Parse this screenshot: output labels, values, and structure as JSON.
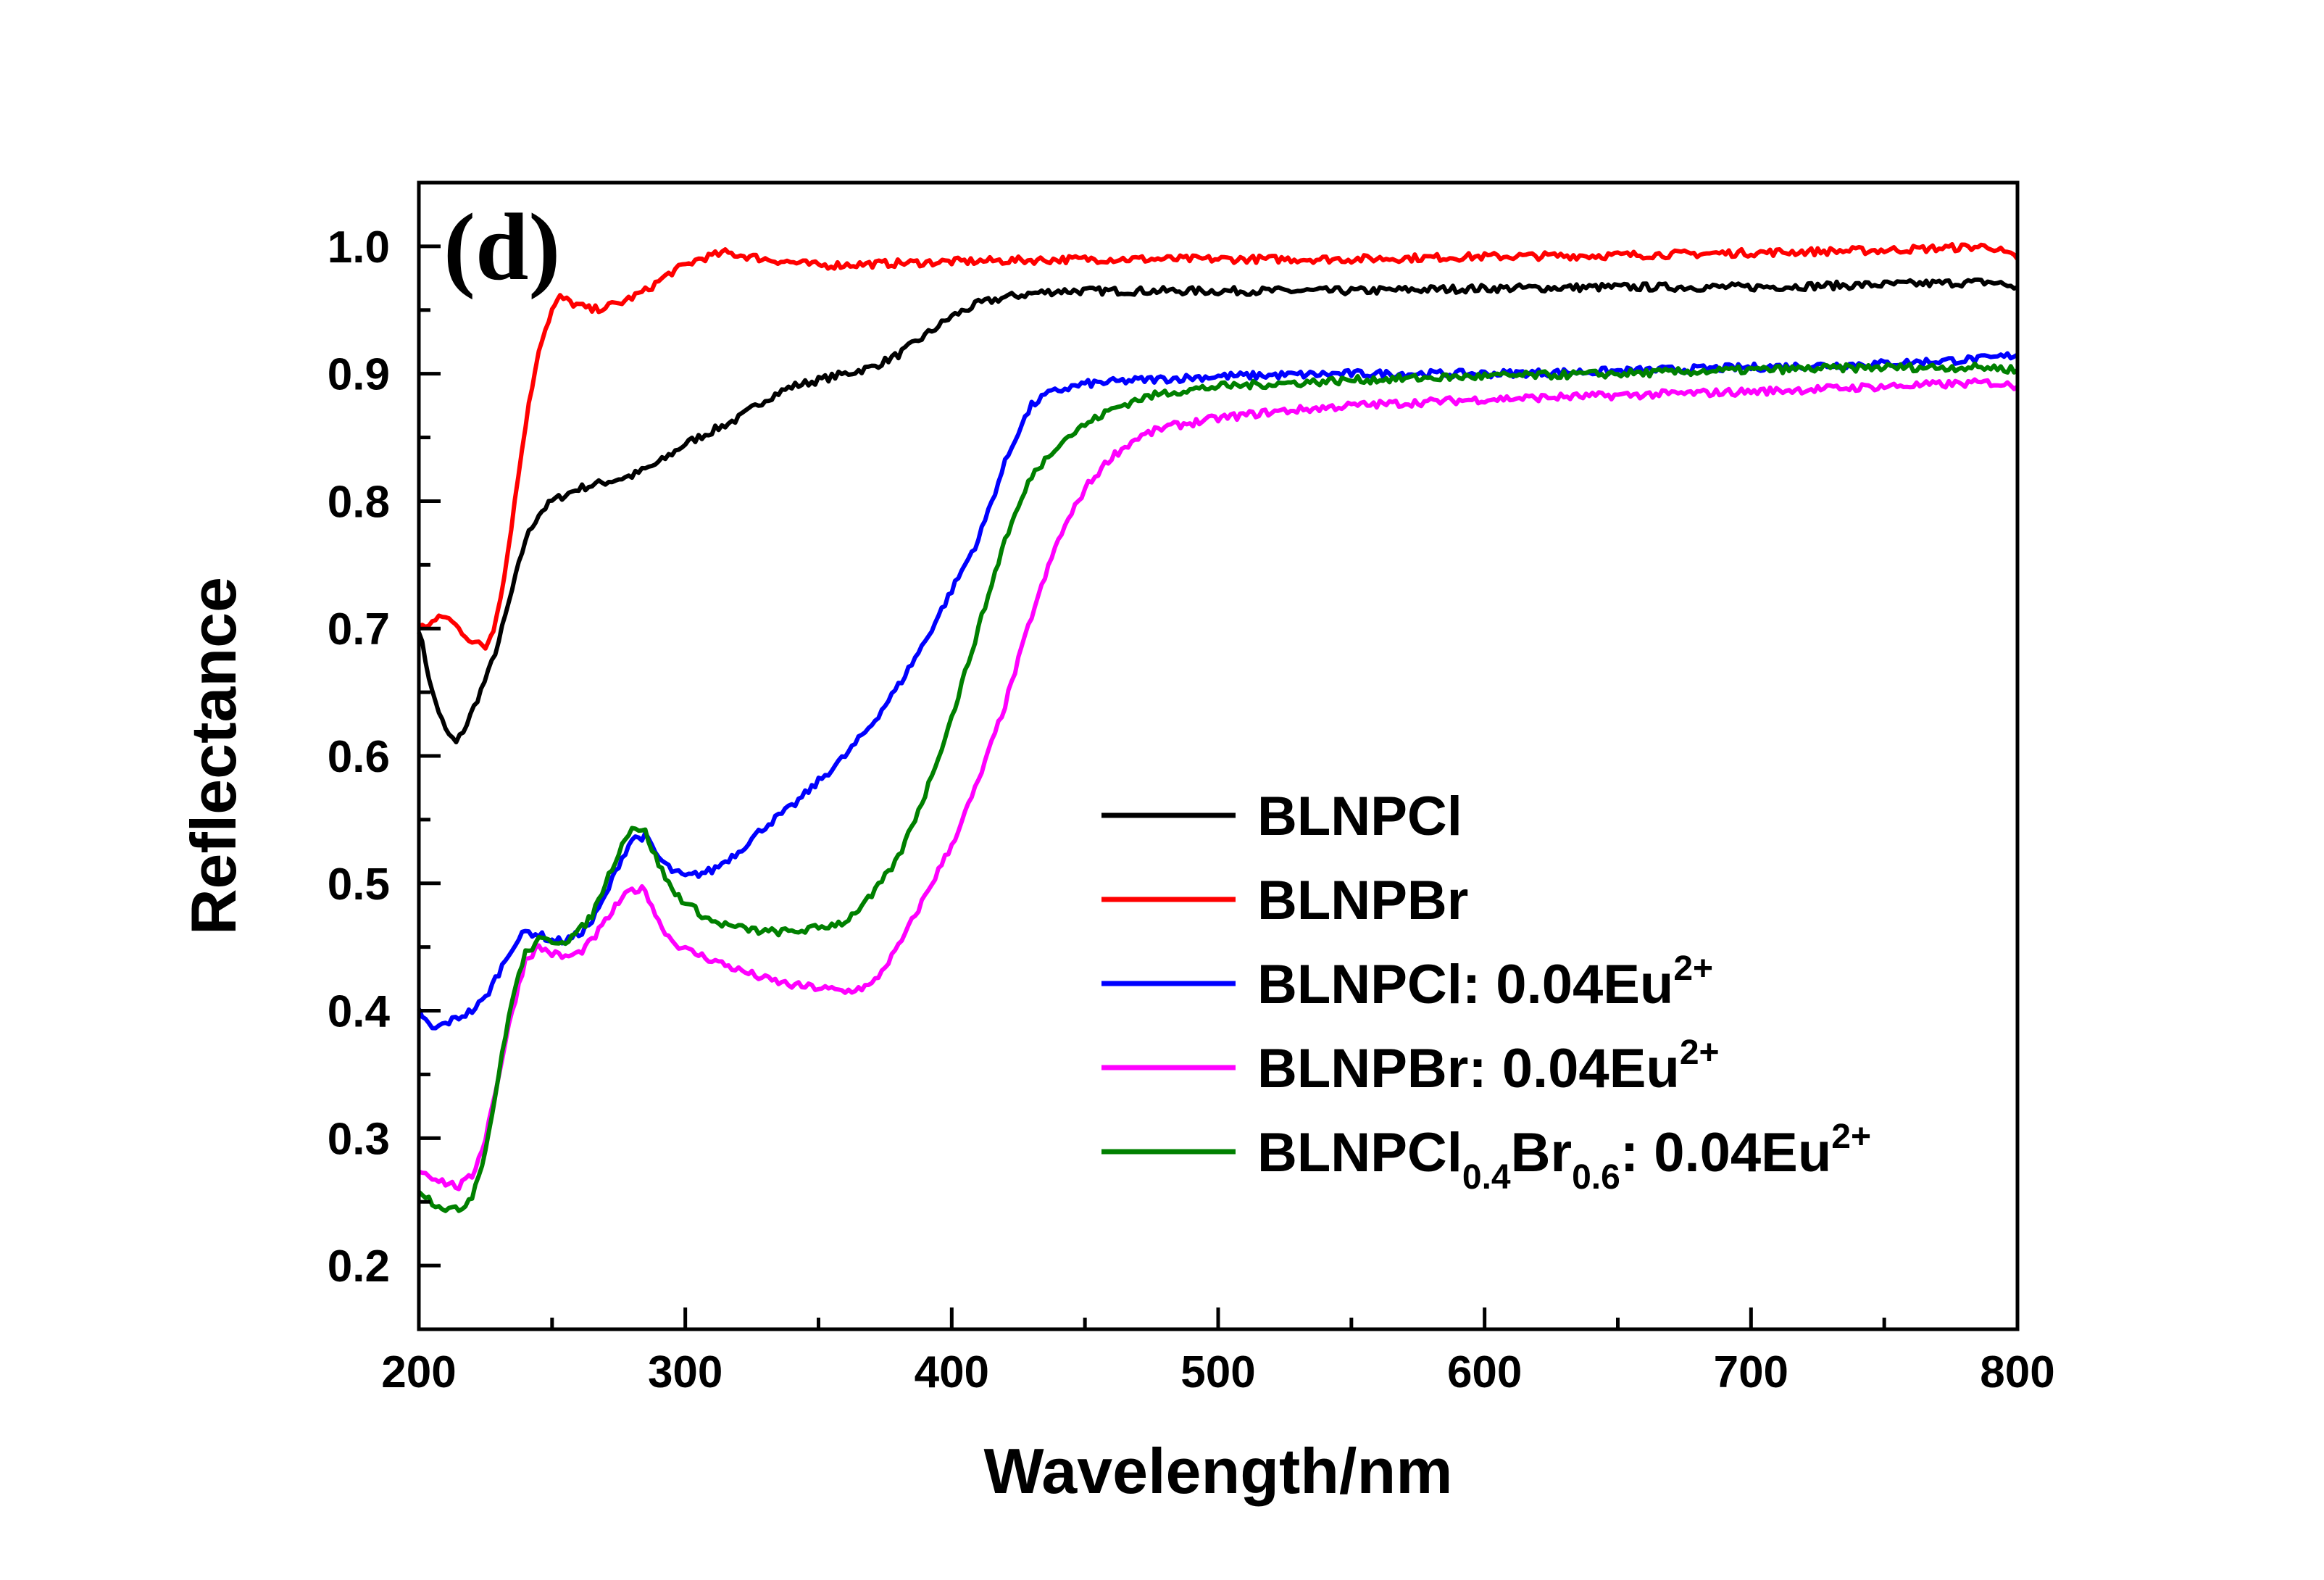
{
  "chart_data": {
    "type": "line",
    "panel_label": "(d)",
    "xlabel": "Wavelength/nm",
    "ylabel": "Reflectance",
    "xlim": [
      200,
      800
    ],
    "ylim": [
      0.15,
      1.05
    ],
    "x_ticks": [
      200,
      300,
      400,
      500,
      600,
      700,
      800
    ],
    "x_tick_labels": [
      "200",
      "300",
      "400",
      "500",
      "600",
      "700",
      "800"
    ],
    "y_ticks": [
      0.2,
      0.3,
      0.4,
      0.5,
      0.6,
      0.7,
      0.8,
      0.9,
      1.0
    ],
    "y_tick_labels": [
      "0.2",
      "0.3",
      "0.4",
      "0.5",
      "0.6",
      "0.7",
      "0.8",
      "0.9",
      "1.0"
    ],
    "grid": false,
    "legend_position": "lower-right",
    "series": [
      {
        "name": "BLNPCl",
        "legend": {
          "parts": [
            {
              "t": "BLNPCl"
            }
          ]
        },
        "color": "#000000",
        "points": [
          [
            200,
            0.7
          ],
          [
            205,
            0.65
          ],
          [
            210,
            0.62
          ],
          [
            214,
            0.61
          ],
          [
            218,
            0.625
          ],
          [
            222,
            0.645
          ],
          [
            226,
            0.665
          ],
          [
            230,
            0.69
          ],
          [
            235,
            0.73
          ],
          [
            240,
            0.77
          ],
          [
            245,
            0.79
          ],
          [
            250,
            0.8
          ],
          [
            255,
            0.805
          ],
          [
            260,
            0.81
          ],
          [
            270,
            0.815
          ],
          [
            280,
            0.82
          ],
          [
            290,
            0.83
          ],
          [
            300,
            0.845
          ],
          [
            310,
            0.855
          ],
          [
            320,
            0.865
          ],
          [
            330,
            0.88
          ],
          [
            340,
            0.89
          ],
          [
            350,
            0.895
          ],
          [
            360,
            0.9
          ],
          [
            370,
            0.905
          ],
          [
            380,
            0.915
          ],
          [
            390,
            0.93
          ],
          [
            400,
            0.945
          ],
          [
            410,
            0.955
          ],
          [
            420,
            0.96
          ],
          [
            430,
            0.963
          ],
          [
            440,
            0.965
          ],
          [
            460,
            0.965
          ],
          [
            500,
            0.965
          ],
          [
            550,
            0.965
          ],
          [
            600,
            0.967
          ],
          [
            650,
            0.968
          ],
          [
            700,
            0.968
          ],
          [
            750,
            0.97
          ],
          [
            790,
            0.972
          ],
          [
            800,
            0.968
          ]
        ]
      },
      {
        "name": "BLNPBr",
        "legend": {
          "parts": [
            {
              "t": "BLNPBr"
            }
          ]
        },
        "color": "#ff0000",
        "points": [
          [
            200,
            0.7
          ],
          [
            205,
            0.705
          ],
          [
            210,
            0.71
          ],
          [
            215,
            0.7
          ],
          [
            220,
            0.69
          ],
          [
            225,
            0.685
          ],
          [
            228,
            0.7
          ],
          [
            232,
            0.74
          ],
          [
            236,
            0.8
          ],
          [
            240,
            0.86
          ],
          [
            245,
            0.92
          ],
          [
            250,
            0.95
          ],
          [
            253,
            0.96
          ],
          [
            258,
            0.955
          ],
          [
            265,
            0.95
          ],
          [
            275,
            0.955
          ],
          [
            285,
            0.965
          ],
          [
            295,
            0.98
          ],
          [
            305,
            0.99
          ],
          [
            315,
            0.995
          ],
          [
            330,
            0.99
          ],
          [
            350,
            0.985
          ],
          [
            400,
            0.988
          ],
          [
            450,
            0.99
          ],
          [
            500,
            0.99
          ],
          [
            550,
            0.99
          ],
          [
            600,
            0.992
          ],
          [
            650,
            0.993
          ],
          [
            700,
            0.995
          ],
          [
            750,
            0.997
          ],
          [
            790,
            1.0
          ],
          [
            800,
            0.99
          ]
        ]
      },
      {
        "name": "BLNPCl: 0.04Eu2+",
        "legend": {
          "parts": [
            {
              "t": "BLNPCl: 0.04Eu"
            },
            {
              "t": "2+",
              "sup": true
            }
          ]
        },
        "color": "#0000ff",
        "points": [
          [
            200,
            0.4
          ],
          [
            205,
            0.385
          ],
          [
            210,
            0.39
          ],
          [
            215,
            0.395
          ],
          [
            220,
            0.4
          ],
          [
            225,
            0.41
          ],
          [
            230,
            0.43
          ],
          [
            235,
            0.45
          ],
          [
            240,
            0.462
          ],
          [
            245,
            0.46
          ],
          [
            250,
            0.455
          ],
          [
            255,
            0.455
          ],
          [
            260,
            0.46
          ],
          [
            265,
            0.47
          ],
          [
            270,
            0.49
          ],
          [
            275,
            0.515
          ],
          [
            280,
            0.535
          ],
          [
            285,
            0.537
          ],
          [
            290,
            0.52
          ],
          [
            295,
            0.51
          ],
          [
            300,
            0.505
          ],
          [
            310,
            0.51
          ],
          [
            320,
            0.525
          ],
          [
            330,
            0.545
          ],
          [
            340,
            0.56
          ],
          [
            350,
            0.58
          ],
          [
            360,
            0.6
          ],
          [
            370,
            0.625
          ],
          [
            380,
            0.655
          ],
          [
            390,
            0.69
          ],
          [
            400,
            0.73
          ],
          [
            410,
            0.77
          ],
          [
            415,
            0.8
          ],
          [
            420,
            0.83
          ],
          [
            425,
            0.855
          ],
          [
            430,
            0.875
          ],
          [
            435,
            0.883
          ],
          [
            440,
            0.887
          ],
          [
            450,
            0.892
          ],
          [
            470,
            0.895
          ],
          [
            500,
            0.898
          ],
          [
            550,
            0.9
          ],
          [
            600,
            0.9
          ],
          [
            650,
            0.902
          ],
          [
            700,
            0.905
          ],
          [
            750,
            0.908
          ],
          [
            790,
            0.912
          ],
          [
            800,
            0.915
          ]
        ]
      },
      {
        "name": "BLNPBr: 0.04Eu2+",
        "legend": {
          "parts": [
            {
              "t": "BLNPBr: 0.04Eu"
            },
            {
              "t": "2+",
              "sup": true
            }
          ]
        },
        "color": "#ff00ff",
        "points": [
          [
            200,
            0.275
          ],
          [
            205,
            0.27
          ],
          [
            210,
            0.265
          ],
          [
            215,
            0.262
          ],
          [
            220,
            0.27
          ],
          [
            225,
            0.3
          ],
          [
            230,
            0.35
          ],
          [
            235,
            0.4
          ],
          [
            240,
            0.44
          ],
          [
            245,
            0.45
          ],
          [
            250,
            0.445
          ],
          [
            255,
            0.442
          ],
          [
            260,
            0.445
          ],
          [
            265,
            0.455
          ],
          [
            270,
            0.47
          ],
          [
            275,
            0.485
          ],
          [
            280,
            0.495
          ],
          [
            285,
            0.495
          ],
          [
            290,
            0.47
          ],
          [
            295,
            0.455
          ],
          [
            300,
            0.448
          ],
          [
            310,
            0.44
          ],
          [
            320,
            0.432
          ],
          [
            330,
            0.425
          ],
          [
            340,
            0.42
          ],
          [
            350,
            0.418
          ],
          [
            360,
            0.415
          ],
          [
            370,
            0.42
          ],
          [
            380,
            0.45
          ],
          [
            390,
            0.49
          ],
          [
            400,
            0.53
          ],
          [
            410,
            0.58
          ],
          [
            420,
            0.64
          ],
          [
            430,
            0.71
          ],
          [
            440,
            0.77
          ],
          [
            450,
            0.81
          ],
          [
            460,
            0.835
          ],
          [
            470,
            0.85
          ],
          [
            480,
            0.858
          ],
          [
            500,
            0.865
          ],
          [
            520,
            0.87
          ],
          [
            550,
            0.875
          ],
          [
            600,
            0.88
          ],
          [
            650,
            0.883
          ],
          [
            700,
            0.886
          ],
          [
            750,
            0.89
          ],
          [
            790,
            0.893
          ],
          [
            800,
            0.89
          ]
        ]
      },
      {
        "name": "BLNPCl0.4Br0.6: 0.04Eu2+",
        "legend": {
          "parts": [
            {
              "t": "BLNPCl"
            },
            {
              "t": "0.4",
              "sub": true
            },
            {
              "t": "Br"
            },
            {
              "t": "0.6",
              "sub": true
            },
            {
              "t": ": 0.04Eu"
            },
            {
              "t": "2+",
              "sup": true
            }
          ]
        },
        "color": "#008000",
        "points": [
          [
            200,
            0.26
          ],
          [
            205,
            0.25
          ],
          [
            210,
            0.245
          ],
          [
            215,
            0.243
          ],
          [
            220,
            0.255
          ],
          [
            225,
            0.29
          ],
          [
            230,
            0.35
          ],
          [
            235,
            0.41
          ],
          [
            240,
            0.445
          ],
          [
            245,
            0.455
          ],
          [
            250,
            0.455
          ],
          [
            255,
            0.455
          ],
          [
            260,
            0.462
          ],
          [
            265,
            0.475
          ],
          [
            270,
            0.5
          ],
          [
            275,
            0.525
          ],
          [
            280,
            0.545
          ],
          [
            285,
            0.54
          ],
          [
            290,
            0.515
          ],
          [
            295,
            0.495
          ],
          [
            300,
            0.485
          ],
          [
            310,
            0.47
          ],
          [
            320,
            0.465
          ],
          [
            330,
            0.462
          ],
          [
            340,
            0.462
          ],
          [
            350,
            0.465
          ],
          [
            360,
            0.47
          ],
          [
            370,
            0.49
          ],
          [
            380,
            0.52
          ],
          [
            390,
            0.57
          ],
          [
            400,
            0.63
          ],
          [
            410,
            0.7
          ],
          [
            420,
            0.77
          ],
          [
            430,
            0.82
          ],
          [
            440,
            0.845
          ],
          [
            450,
            0.86
          ],
          [
            460,
            0.872
          ],
          [
            470,
            0.88
          ],
          [
            480,
            0.885
          ],
          [
            500,
            0.89
          ],
          [
            550,
            0.895
          ],
          [
            600,
            0.898
          ],
          [
            650,
            0.9
          ],
          [
            700,
            0.903
          ],
          [
            750,
            0.905
          ],
          [
            790,
            0.905
          ],
          [
            800,
            0.903
          ]
        ]
      }
    ]
  }
}
